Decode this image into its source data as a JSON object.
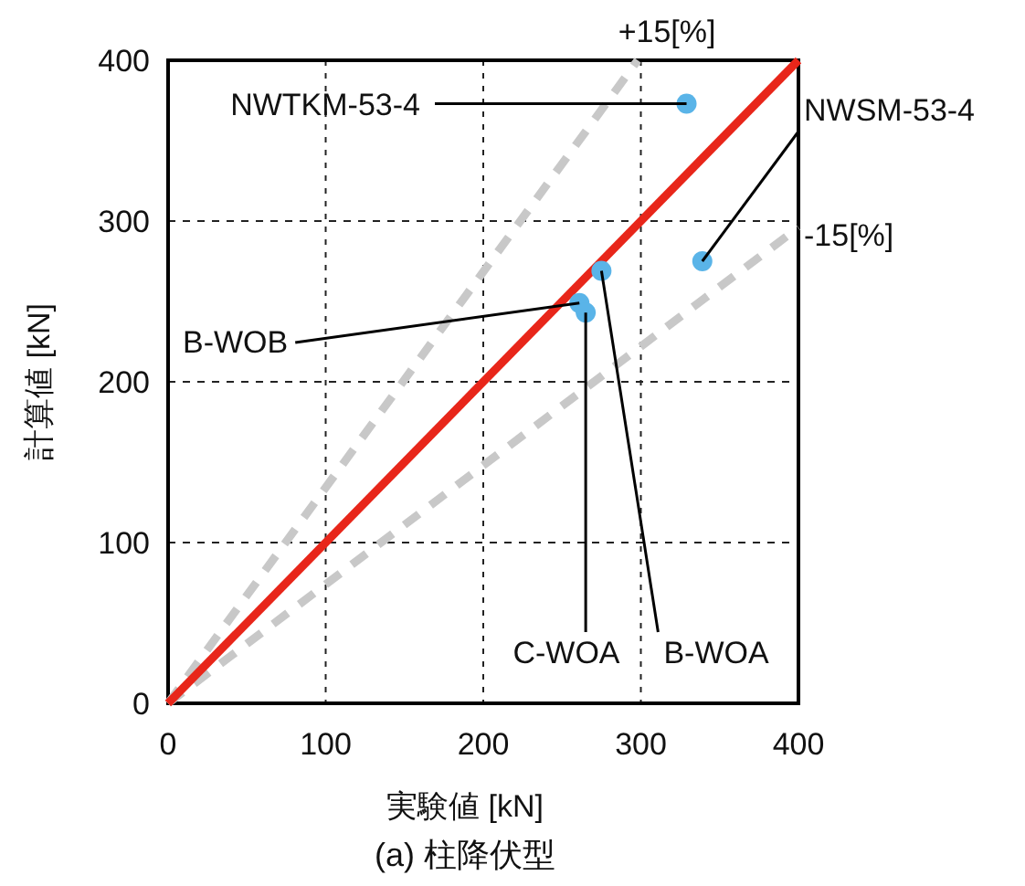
{
  "chart_data": {
    "type": "scatter",
    "title": "(a) 柱降伏型",
    "xlabel": "実験値 [kN]",
    "ylabel": "計算値 [kN]",
    "xlim": [
      0,
      400
    ],
    "ylim": [
      0,
      400
    ],
    "xticks": [
      0,
      100,
      200,
      300,
      400
    ],
    "yticks": [
      0,
      100,
      200,
      300,
      400
    ],
    "grid": true,
    "series": [
      {
        "type": "line",
        "color": "#c8c8c8",
        "line_style": "dashed",
        "marker": "none",
        "x": [
          0,
          298
        ],
        "values": [
          0,
          400
        ]
      },
      {
        "type": "line",
        "color": "#c8c8c8",
        "line_style": "dashed",
        "marker": "none",
        "x": [
          0,
          400
        ],
        "values": [
          0,
          296
        ]
      },
      {
        "type": "line",
        "color": "#e8261a",
        "line_style": "solid",
        "marker": "none",
        "x": [
          0,
          400
        ],
        "values": [
          0,
          400
        ]
      },
      {
        "type": "scatter",
        "color": "#5ab4e8",
        "marker": "circle",
        "x": [
          329,
          339,
          261,
          265,
          275
        ],
        "values": [
          373,
          275,
          249,
          243,
          269
        ]
      }
    ],
    "annotations": [
      {
        "text": "+15[%]",
        "x": 298,
        "y": 400
      },
      {
        "text": "-15[%]",
        "x": 400,
        "y": 296
      },
      {
        "text": "NWTKM-53-4",
        "x": 329,
        "y": 373
      },
      {
        "text": "NWSM-53-4",
        "x": 339,
        "y": 275
      },
      {
        "text": "B-WOB",
        "x": 261,
        "y": 249
      },
      {
        "text": "C-WOA",
        "x": 265,
        "y": 243
      },
      {
        "text": "B-WOA",
        "x": 275,
        "y": 269
      }
    ]
  }
}
